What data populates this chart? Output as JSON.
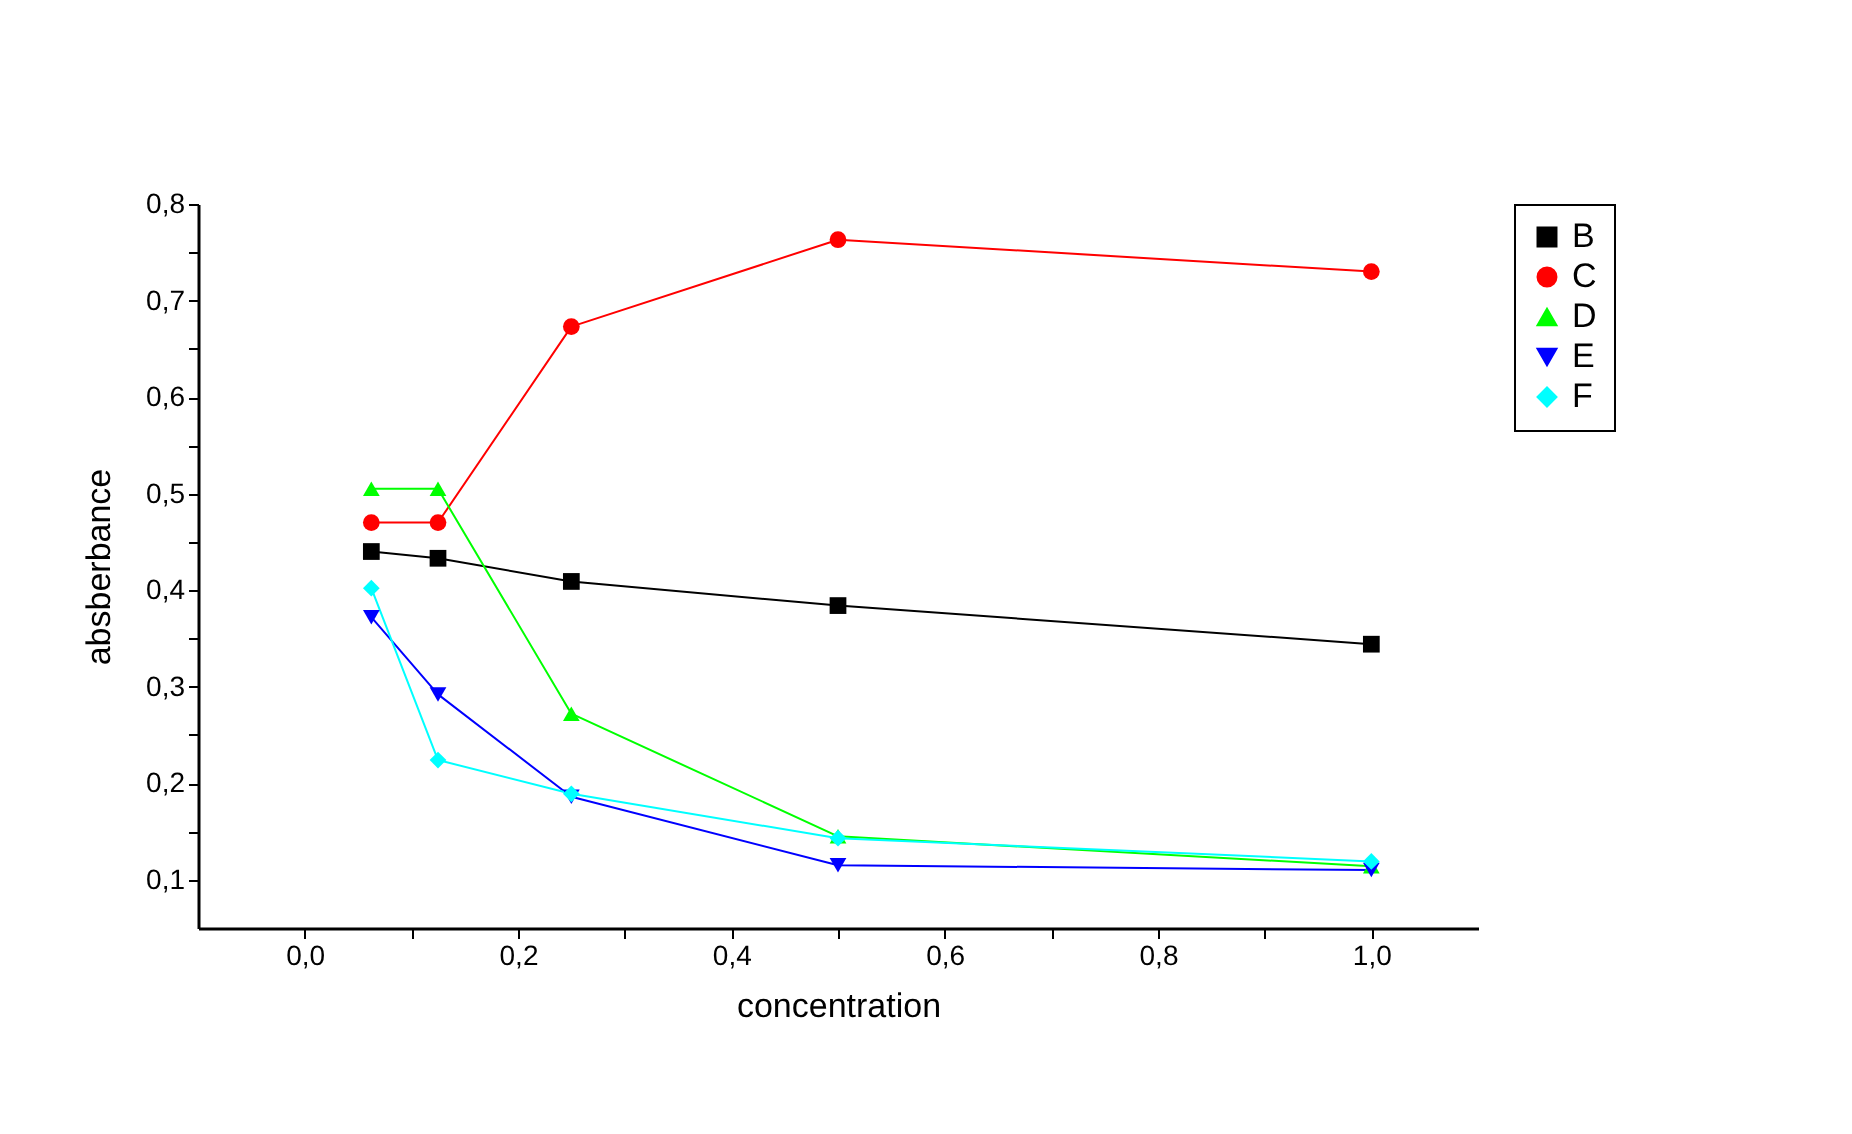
{
  "chart_data": {
    "type": "line",
    "xlabel": "concentration",
    "ylabel": "absberbance",
    "x": [
      0.0625,
      0.125,
      0.25,
      0.5,
      1.0
    ],
    "series": [
      {
        "name": "B",
        "color": "#000000",
        "marker": "square",
        "values": [
          0.44,
          0.433,
          0.409,
          0.384,
          0.344
        ]
      },
      {
        "name": "C",
        "color": "#ff0000",
        "marker": "circle",
        "values": [
          0.47,
          0.47,
          0.673,
          0.763,
          0.73
        ]
      },
      {
        "name": "D",
        "color": "#00ff00",
        "marker": "triangle",
        "values": [
          0.505,
          0.505,
          0.272,
          0.145,
          0.114
        ]
      },
      {
        "name": "E",
        "color": "#0000ff",
        "marker": "triangle-down",
        "values": [
          0.372,
          0.292,
          0.186,
          0.115,
          0.11
        ]
      },
      {
        "name": "F",
        "color": "#00ffff",
        "marker": "diamond",
        "values": [
          0.402,
          0.224,
          0.189,
          0.143,
          0.119
        ]
      }
    ],
    "xlim": [
      -0.1,
      1.1
    ],
    "xticks": [
      {
        "value": 0,
        "label": "0,0"
      },
      {
        "value": 0.1,
        "label": null
      },
      {
        "value": 0.2,
        "label": "0,2"
      },
      {
        "value": 0.3,
        "label": null
      },
      {
        "value": 0.4,
        "label": "0,4"
      },
      {
        "value": 0.5,
        "label": null
      },
      {
        "value": 0.6,
        "label": "0,6"
      },
      {
        "value": 0.7,
        "label": null
      },
      {
        "value": 0.8,
        "label": "0,8"
      },
      {
        "value": 0.9,
        "label": null
      },
      {
        "value": 1.0,
        "label": "1,0"
      }
    ],
    "ylim": [
      0.05,
      0.8
    ],
    "yticks": [
      {
        "value": 0.1,
        "label": "0,1"
      },
      {
        "value": 0.15,
        "label": null
      },
      {
        "value": 0.2,
        "label": "0,2"
      },
      {
        "value": 0.25,
        "label": null
      },
      {
        "value": 0.3,
        "label": "0,3"
      },
      {
        "value": 0.35,
        "label": null
      },
      {
        "value": 0.4,
        "label": "0,4"
      },
      {
        "value": 0.45,
        "label": null
      },
      {
        "value": 0.5,
        "label": "0,5"
      },
      {
        "value": 0.55,
        "label": null
      },
      {
        "value": 0.6,
        "label": "0,6"
      },
      {
        "value": 0.65,
        "label": null
      },
      {
        "value": 0.7,
        "label": "0,7"
      },
      {
        "value": 0.75,
        "label": null
      },
      {
        "value": 0.8,
        "label": "0,8"
      }
    ],
    "grid": false,
    "legend": "top right",
    "line_style": "solid"
  }
}
